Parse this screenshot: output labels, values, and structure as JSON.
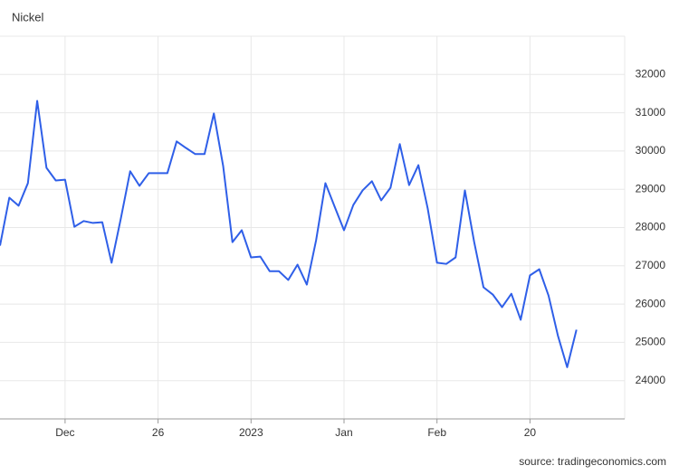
{
  "chart_data": {
    "type": "line",
    "title": "Nickel",
    "source": "source: tradingeconomics.com",
    "categories": [
      null,
      null,
      null,
      null,
      null,
      null,
      null,
      "Dec",
      null,
      null,
      null,
      null,
      null,
      null,
      null,
      null,
      null,
      "26",
      null,
      null,
      null,
      null,
      null,
      null,
      null,
      null,
      null,
      "2023",
      null,
      null,
      null,
      null,
      null,
      null,
      null,
      null,
      null,
      "Jan",
      null,
      null,
      null,
      null,
      null,
      null,
      null,
      null,
      null,
      "Feb",
      null,
      null,
      null,
      null,
      null,
      null,
      null,
      null,
      null,
      "20",
      null,
      null,
      null,
      null,
      null
    ],
    "series": [
      {
        "name": "Nickel",
        "color": "#2f5fe8",
        "values": [
          27527,
          28780,
          28570,
          29160,
          31310,
          29560,
          29230,
          29250,
          28020,
          28170,
          28120,
          28140,
          27080,
          28240,
          29470,
          29090,
          29420,
          29420,
          29420,
          30250,
          30080,
          29920,
          29920,
          30980,
          29610,
          27620,
          27930,
          27220,
          27240,
          26860,
          26860,
          26630,
          27030,
          26510,
          27670,
          29160,
          28540,
          27930,
          28590,
          28970,
          29210,
          28710,
          29040,
          30180,
          29110,
          29630,
          28500,
          27080,
          27050,
          27220,
          28970,
          27620,
          26440,
          26250,
          25920,
          26270,
          25590,
          26750,
          26910,
          26220,
          25180,
          24350,
          25330
        ]
      }
    ],
    "ylim": [
      23000,
      33000
    ],
    "yticks": [
      24000,
      25000,
      26000,
      27000,
      28000,
      29000,
      30000,
      31000,
      32000
    ],
    "grid": true
  }
}
